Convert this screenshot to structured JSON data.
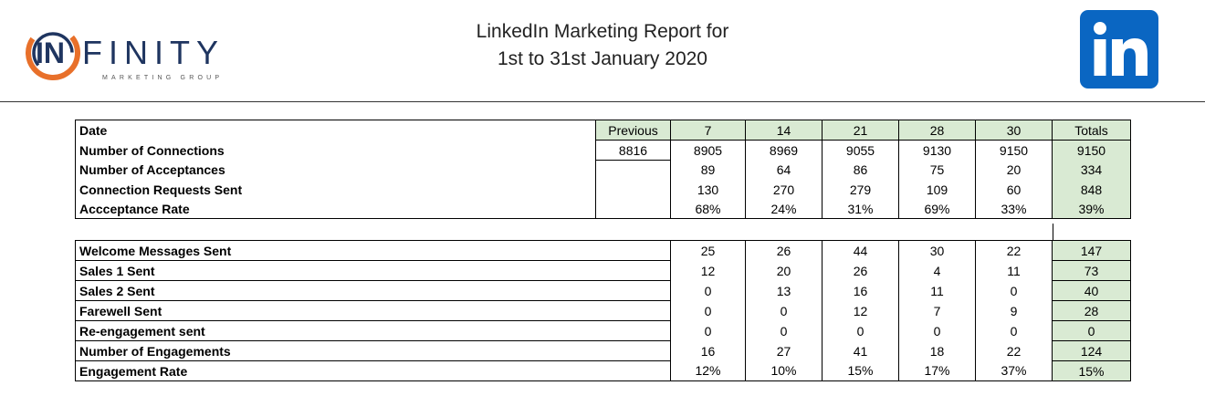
{
  "header": {
    "logo_word": "INFINITY",
    "logo_sub": "MARKETING GROUP",
    "title_line1": "LinkedIn Marketing Report for",
    "title_line2": "1st to 31st January 2020",
    "linkedin_logo_text": "in",
    "colors": {
      "logo_orange": "#e8702a",
      "logo_navy": "#1f3560",
      "linkedin_blue": "#0a66c2",
      "header_green": "#d9ead3"
    }
  },
  "table1": {
    "columns": [
      "Date",
      "Previous",
      "7",
      "14",
      "21",
      "28",
      "30",
      "Totals"
    ],
    "rows": [
      {
        "label": "Number of Connections",
        "previous": "8816",
        "values": [
          "8905",
          "8969",
          "9055",
          "9130",
          "9150"
        ],
        "total": "9150"
      },
      {
        "label": "Number of Acceptances",
        "previous": "",
        "values": [
          "89",
          "64",
          "86",
          "75",
          "20"
        ],
        "total": "334"
      },
      {
        "label": "Connection Requests Sent",
        "previous": "",
        "values": [
          "130",
          "270",
          "279",
          "109",
          "60"
        ],
        "total": "848"
      },
      {
        "label": "Accceptance Rate",
        "previous": "",
        "values": [
          "68%",
          "24%",
          "31%",
          "69%",
          "33%"
        ],
        "total": "39%"
      }
    ]
  },
  "table2": {
    "rows": [
      {
        "label": "Welcome Messages Sent",
        "values": [
          "25",
          "26",
          "44",
          "30",
          "22"
        ],
        "total": "147"
      },
      {
        "label": "Sales 1 Sent",
        "values": [
          "12",
          "20",
          "26",
          "4",
          "11"
        ],
        "total": "73"
      },
      {
        "label": "Sales 2 Sent",
        "values": [
          "0",
          "13",
          "16",
          "11",
          "0"
        ],
        "total": "40"
      },
      {
        "label": "Farewell Sent",
        "values": [
          "0",
          "0",
          "12",
          "7",
          "9"
        ],
        "total": "28"
      },
      {
        "label": "Re-engagement sent",
        "values": [
          "0",
          "0",
          "0",
          "0",
          "0"
        ],
        "total": "0"
      },
      {
        "label": "Number of Engagements",
        "values": [
          "16",
          "27",
          "41",
          "18",
          "22"
        ],
        "total": "124"
      },
      {
        "label": "Engagement Rate",
        "values": [
          "12%",
          "10%",
          "15%",
          "17%",
          "37%"
        ],
        "total": "15%"
      }
    ]
  }
}
